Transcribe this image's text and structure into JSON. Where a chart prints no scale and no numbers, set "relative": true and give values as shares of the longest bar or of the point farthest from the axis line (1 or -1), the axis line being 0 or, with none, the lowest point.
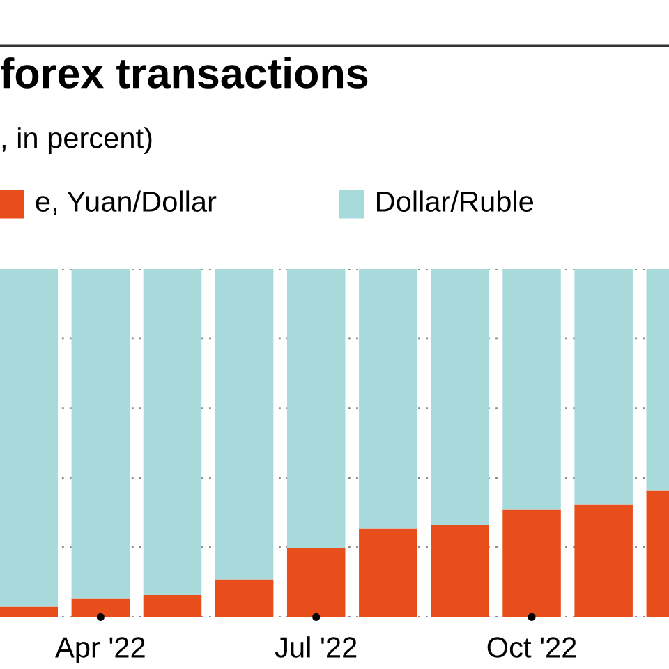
{
  "chart_data": {
    "type": "bar",
    "title": "forex transactions",
    "subtitle": ", in percent)",
    "categories": [
      null,
      "Apr '22",
      null,
      null,
      "Jul '22",
      null,
      null,
      "Oct '22",
      null,
      null
    ],
    "stacked": true,
    "relative": true,
    "grid": "y",
    "legend": "top",
    "series": [
      {
        "name": "e, Yuan/Dollar",
        "color": "#e84e1b",
        "values": [
          0.03,
          0.054,
          0.063,
          0.108,
          0.198,
          0.254,
          0.263,
          0.308,
          0.324,
          0.364
        ]
      },
      {
        "name": "Dollar/Ruble",
        "color": "#a8dadc",
        "values": [
          0.97,
          0.946,
          0.937,
          0.892,
          0.802,
          0.746,
          0.737,
          0.692,
          0.676,
          0.636
        ]
      }
    ]
  }
}
